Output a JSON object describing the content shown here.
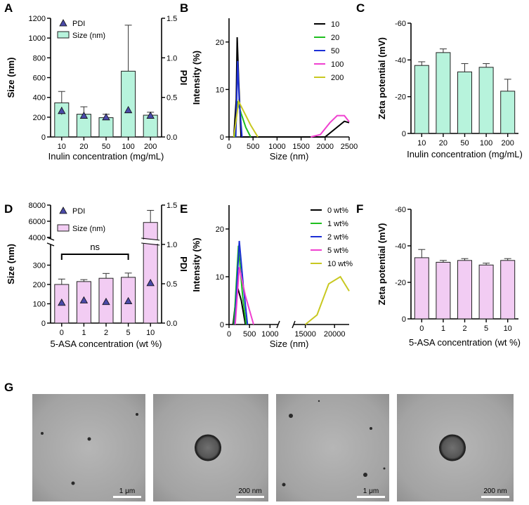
{
  "chart_data": [
    {
      "panel": "A",
      "type": "bar",
      "categories": [
        "10",
        "20",
        "50",
        "100",
        "200"
      ],
      "xlabel": "Inulin concentration (mg/mL)",
      "ylabel": "Size (nm)",
      "y2label": "PDI",
      "ylim": [
        0,
        1200
      ],
      "yticks": [
        "0",
        "200",
        "400",
        "600",
        "800",
        "1000",
        "1200"
      ],
      "y2lim": [
        0,
        1.5
      ],
      "y2ticks": [
        "0.0",
        "0.5",
        "1.0",
        "1.5"
      ],
      "legend": [
        "PDI",
        "Size (nm)"
      ],
      "legend_position": "top-left",
      "bar_color": "#b7f3dc",
      "series": [
        {
          "name": "Size (nm)",
          "values": [
            345,
            230,
            195,
            665,
            220
          ],
          "errors": [
            115,
            75,
            35,
            465,
            30
          ]
        },
        {
          "name": "PDI",
          "values": [
            0.33,
            0.27,
            0.25,
            0.34,
            0.27
          ],
          "errors": [
            0.05,
            0.02,
            0.03,
            0.01,
            0.02
          ]
        }
      ]
    },
    {
      "panel": "B",
      "type": "line",
      "xlabel": "Size (nm)",
      "ylabel": "Intensity (%)",
      "xlim": [
        0,
        2500
      ],
      "xticks": [
        "0",
        "500",
        "1000",
        "1500",
        "2000",
        "2500"
      ],
      "ylim": [
        0,
        25
      ],
      "yticks": [
        "0",
        "10",
        "20"
      ],
      "legend_position": "top-right",
      "series": [
        {
          "name": "10",
          "color": "#000000",
          "points": [
            [
              100,
              0
            ],
            [
              150,
              8
            ],
            [
              170,
              21
            ],
            [
              200,
              12
            ],
            [
              250,
              0
            ],
            [
              2000,
              0
            ],
            [
              2400,
              3.3
            ],
            [
              2500,
              3
            ]
          ]
        },
        {
          "name": "20",
          "color": "#1fbf1f",
          "points": [
            [
              120,
              0
            ],
            [
              180,
              7.5
            ],
            [
              250,
              5
            ],
            [
              350,
              2
            ],
            [
              450,
              0
            ]
          ]
        },
        {
          "name": "50",
          "color": "#1c2fd6",
          "points": [
            [
              140,
              0
            ],
            [
              180,
              16
            ],
            [
              210,
              8
            ],
            [
              270,
              0
            ]
          ]
        },
        {
          "name": "100",
          "color": "#f040d0",
          "points": [
            [
              1700,
              0
            ],
            [
              1900,
              0.5
            ],
            [
              2100,
              3
            ],
            [
              2250,
              4.5
            ],
            [
              2400,
              4.5
            ],
            [
              2500,
              3.2
            ]
          ]
        },
        {
          "name": "200",
          "color": "#c8c821",
          "points": [
            [
              100,
              0
            ],
            [
              200,
              7.5
            ],
            [
              300,
              5.5
            ],
            [
              450,
              2.5
            ],
            [
              600,
              0
            ]
          ]
        }
      ]
    },
    {
      "panel": "C",
      "type": "bar",
      "categories": [
        "10",
        "20",
        "50",
        "100",
        "200"
      ],
      "xlabel": "Inulin concentration (mg/mL)",
      "ylabel": "Zeta potential (mV)",
      "ylim": [
        0,
        -60
      ],
      "yticks": [
        "0",
        "-20",
        "-40",
        "-60"
      ],
      "bar_color": "#b7f3dc",
      "values": [
        -37,
        -44,
        -33.5,
        -36,
        -23
      ],
      "errors": [
        2,
        2,
        4.5,
        2,
        6.5
      ]
    },
    {
      "panel": "D",
      "type": "bar",
      "categories": [
        "0",
        "1",
        "2",
        "5",
        "10"
      ],
      "xlabel": "5-ASA concentration (wt %)",
      "ylabel": "Size (nm)",
      "y2label": "PDI",
      "ylim": [
        0,
        8000
      ],
      "axis_break": [
        400,
        4000
      ],
      "yticks": [
        "0",
        "100",
        "200",
        "300",
        "4000",
        "6000",
        "8000"
      ],
      "y2lim": [
        0,
        1.5
      ],
      "y2ticks": [
        "0.0",
        "0.5",
        "1.0",
        "1.5"
      ],
      "legend": [
        "PDI",
        "Size (nm)"
      ],
      "legend_position": "top-left",
      "annotation": "ns",
      "bar_color": "#f2ccf3",
      "series": [
        {
          "name": "Size (nm)",
          "values": [
            200,
            215,
            232,
            237,
            5850
          ],
          "errors": [
            28,
            10,
            25,
            22,
            1500
          ]
        },
        {
          "name": "PDI",
          "values": [
            0.26,
            0.29,
            0.27,
            0.28,
            0.51
          ],
          "errors": [
            0,
            0,
            0,
            0,
            0
          ]
        }
      ]
    },
    {
      "panel": "E",
      "type": "line",
      "xlabel": "Size (nm)",
      "ylabel": "Intensity (%)",
      "axis_break": [
        1200,
        13000
      ],
      "xticks": [
        "0",
        "500",
        "1000",
        "15000",
        "20000"
      ],
      "ylim": [
        0,
        25
      ],
      "yticks": [
        "0",
        "10",
        "20"
      ],
      "legend_position": "top-right",
      "series": [
        {
          "name": "0 wt%",
          "color": "#000000",
          "points": [
            [
              100,
              0
            ],
            [
              200,
              8
            ],
            [
              300,
              5
            ],
            [
              400,
              0
            ]
          ]
        },
        {
          "name": "1 wt%",
          "color": "#1fbf1f",
          "points": [
            [
              120,
              0
            ],
            [
              230,
              16.5
            ],
            [
              330,
              6
            ],
            [
              420,
              0
            ]
          ]
        },
        {
          "name": "2 wt%",
          "color": "#1c2fd6",
          "points": [
            [
              140,
              0
            ],
            [
              250,
              17.5
            ],
            [
              350,
              8
            ],
            [
              450,
              0
            ]
          ]
        },
        {
          "name": "5 wt%",
          "color": "#f040d0",
          "points": [
            [
              150,
              0
            ],
            [
              250,
              12
            ],
            [
              400,
              6
            ],
            [
              600,
              0
            ]
          ]
        },
        {
          "name": "10 wt%",
          "color": "#c8c821",
          "points": [
            [
              15000,
              0
            ],
            [
              17000,
              2
            ],
            [
              19000,
              8.5
            ],
            [
              21000,
              10
            ],
            [
              22500,
              7
            ]
          ]
        }
      ]
    },
    {
      "panel": "F",
      "type": "bar",
      "categories": [
        "0",
        "1",
        "2",
        "5",
        "10"
      ],
      "xlabel": "5-ASA concentration (wt %)",
      "ylabel": "Zeta potential (mV)",
      "ylim": [
        0,
        -60
      ],
      "yticks": [
        "0",
        "-20",
        "-40",
        "-60"
      ],
      "bar_color": "#f2ccf3",
      "values": [
        -33.5,
        -31,
        -32,
        -29.5,
        -32
      ],
      "errors": [
        4.5,
        1,
        1,
        1,
        1
      ]
    }
  ],
  "panel_g": {
    "label": "G",
    "images": [
      {
        "scale": "1 μm"
      },
      {
        "scale": "200 nm"
      },
      {
        "scale": "1 μm"
      },
      {
        "scale": "200 nm"
      }
    ]
  }
}
